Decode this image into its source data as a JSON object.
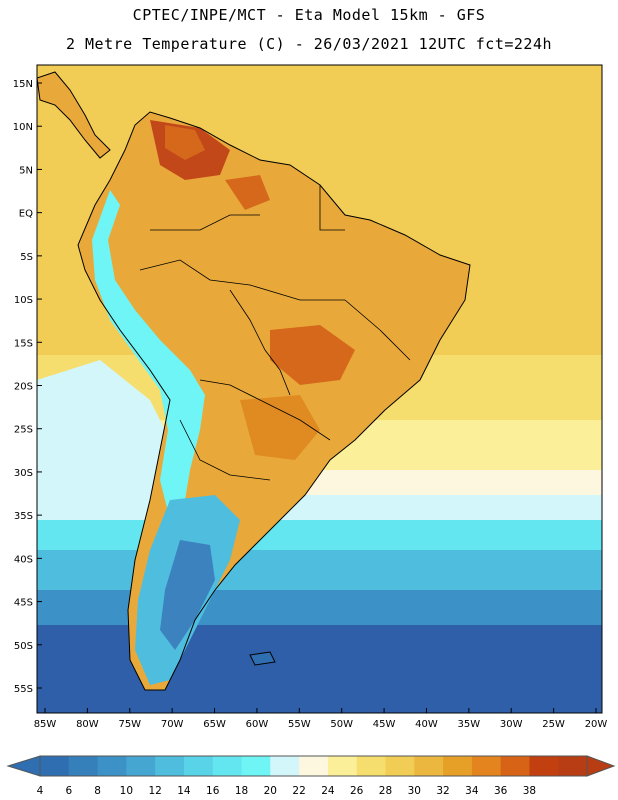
{
  "header": {
    "line1": "CPTEC/INPE/MCT -  Eta Model 15km - GFS",
    "line2": "2 Metre Temperature (C) - 26/03/2021 12UTC fct=224h"
  },
  "lat_labels": [
    "15N",
    "10N",
    "5N",
    "EQ",
    "5S",
    "10S",
    "15S",
    "20S",
    "25S",
    "30S",
    "35S",
    "40S",
    "45S",
    "50S",
    "55S"
  ],
  "lon_labels": [
    "85W",
    "80W",
    "75W",
    "70W",
    "65W",
    "60W",
    "55W",
    "50W",
    "45W",
    "40W",
    "35W",
    "30W",
    "25W",
    "20W"
  ],
  "colorbar": {
    "labels": [
      "4",
      "6",
      "8",
      "10",
      "12",
      "14",
      "16",
      "18",
      "20",
      "22",
      "24",
      "26",
      "28",
      "30",
      "32",
      "34",
      "36",
      "38"
    ],
    "colors": [
      "#2f6eb0",
      "#357fbb",
      "#3c92c7",
      "#46a6d2",
      "#4fbddd",
      "#58d3e8",
      "#63e6ef",
      "#6ff5f5",
      "#d3f6fb",
      "#fdf7e0",
      "#fcef99",
      "#f5de6e",
      "#f1cd55",
      "#ecb73f",
      "#e7a027",
      "#e3841e",
      "#d76316",
      "#c24010",
      "#b83d14"
    ]
  },
  "map_colors": {
    "ocean_south": "#2f5fa8",
    "ocean_mid": "#3c92c7",
    "ocean_cold": "#4fbddd",
    "ocean_cool": "#63e6ef",
    "ocean_light": "#d3f6fb",
    "ocean_cream": "#fdf7e0",
    "ocean_pale": "#fcef99",
    "ocean_warm": "#f5de6e",
    "ocean_tropic": "#f1cd55",
    "land_base": "#e9a93a",
    "land_hot": "#e08a22",
    "land_hotter": "#d5681b",
    "land_hottest": "#c2481a",
    "andes_cold": "#6ff5f5",
    "andes_colder": "#4fbddd",
    "andes_coldest": "#3c82bf",
    "patagonia": "#2f6eb0"
  }
}
